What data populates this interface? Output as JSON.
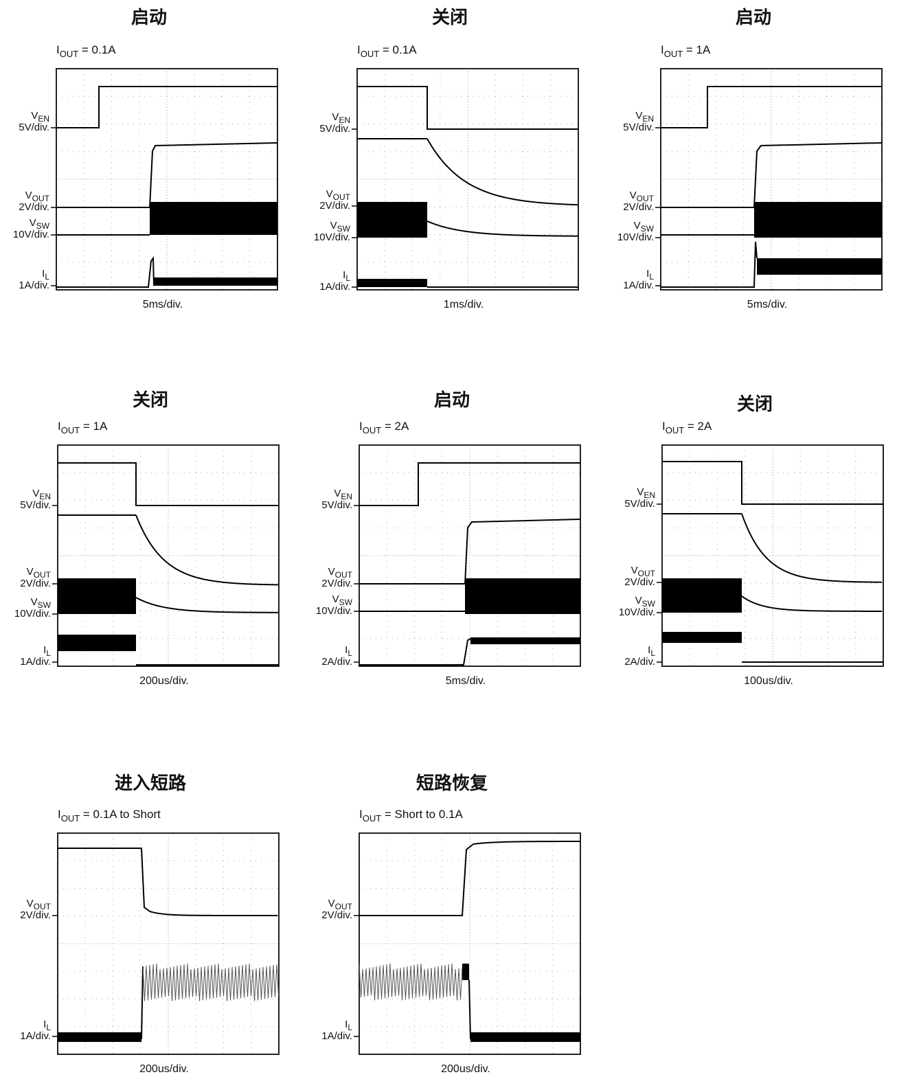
{
  "panels": [
    {
      "title": "启动",
      "condition": {
        "symbol": "I",
        "sub": "OUT",
        "text": " = 0.1A"
      },
      "channels": [
        {
          "symbol": "V",
          "sub": "EN",
          "scale": "5V/div."
        },
        {
          "symbol": "V",
          "sub": "OUT",
          "scale": "2V/div."
        },
        {
          "symbol": "V",
          "sub": "SW",
          "scale": "10V/div."
        },
        {
          "symbol": "I",
          "sub": "L",
          "scale": "1A/div."
        }
      ],
      "timebase": "5ms/div."
    },
    {
      "title": "关闭",
      "condition": {
        "symbol": "I",
        "sub": "OUT",
        "text": " = 0.1A"
      },
      "channels": [
        {
          "symbol": "V",
          "sub": "EN",
          "scale": "5V/div."
        },
        {
          "symbol": "V",
          "sub": "OUT",
          "scale": "2V/div."
        },
        {
          "symbol": "V",
          "sub": "SW",
          "scale": "10V/div."
        },
        {
          "symbol": "I",
          "sub": "L",
          "scale": "1A/div."
        }
      ],
      "timebase": "1ms/div."
    },
    {
      "title": "启动",
      "condition": {
        "symbol": "I",
        "sub": "OUT",
        "text": " = 1A"
      },
      "channels": [
        {
          "symbol": "V",
          "sub": "EN",
          "scale": "5V/div."
        },
        {
          "symbol": "V",
          "sub": "OUT",
          "scale": "2V/div."
        },
        {
          "symbol": "V",
          "sub": "SW",
          "scale": "10V/div."
        },
        {
          "symbol": "I",
          "sub": "L",
          "scale": "1A/div."
        }
      ],
      "timebase": "5ms/div."
    },
    {
      "title": "关闭",
      "condition": {
        "symbol": "I",
        "sub": "OUT",
        "text": " = 1A"
      },
      "channels": [
        {
          "symbol": "V",
          "sub": "EN",
          "scale": "5V/div."
        },
        {
          "symbol": "V",
          "sub": "OUT",
          "scale": "2V/div."
        },
        {
          "symbol": "V",
          "sub": "SW",
          "scale": "10V/div."
        },
        {
          "symbol": "I",
          "sub": "L",
          "scale": "1A/div."
        }
      ],
      "timebase": "200us/div."
    },
    {
      "title": "启动",
      "condition": {
        "symbol": "I",
        "sub": "OUT",
        "text": " = 2A"
      },
      "channels": [
        {
          "symbol": "V",
          "sub": "EN",
          "scale": "5V/div."
        },
        {
          "symbol": "V",
          "sub": "OUT",
          "scale": "2V/div."
        },
        {
          "symbol": "V",
          "sub": "SW",
          "scale": "10V/div."
        },
        {
          "symbol": "I",
          "sub": "L",
          "scale": "2A/div."
        }
      ],
      "timebase": "5ms/div."
    },
    {
      "title": "关闭",
      "condition": {
        "symbol": "I",
        "sub": "OUT",
        "text": " = 2A"
      },
      "channels": [
        {
          "symbol": "V",
          "sub": "EN",
          "scale": "5V/div."
        },
        {
          "symbol": "V",
          "sub": "OUT",
          "scale": "2V/div."
        },
        {
          "symbol": "V",
          "sub": "SW",
          "scale": "10V/div."
        },
        {
          "symbol": "I",
          "sub": "L",
          "scale": "2A/div."
        }
      ],
      "timebase": "100us/div."
    },
    {
      "title": "进入短路",
      "condition": {
        "symbol": "I",
        "sub": "OUT",
        "text": " = 0.1A to Short"
      },
      "channels": [
        {
          "symbol": "V",
          "sub": "OUT",
          "scale": "2V/div."
        },
        {
          "symbol": "I",
          "sub": "L",
          "scale": "1A/div."
        }
      ],
      "timebase": "200us/div."
    },
    {
      "title": "短路恢复",
      "condition": {
        "symbol": "I",
        "sub": "OUT",
        "text": " = Short to 0.1A"
      },
      "channels": [
        {
          "symbol": "V",
          "sub": "OUT",
          "scale": "2V/div."
        },
        {
          "symbol": "I",
          "sub": "L",
          "scale": "1A/div."
        }
      ],
      "timebase": "200us/div."
    }
  ]
}
